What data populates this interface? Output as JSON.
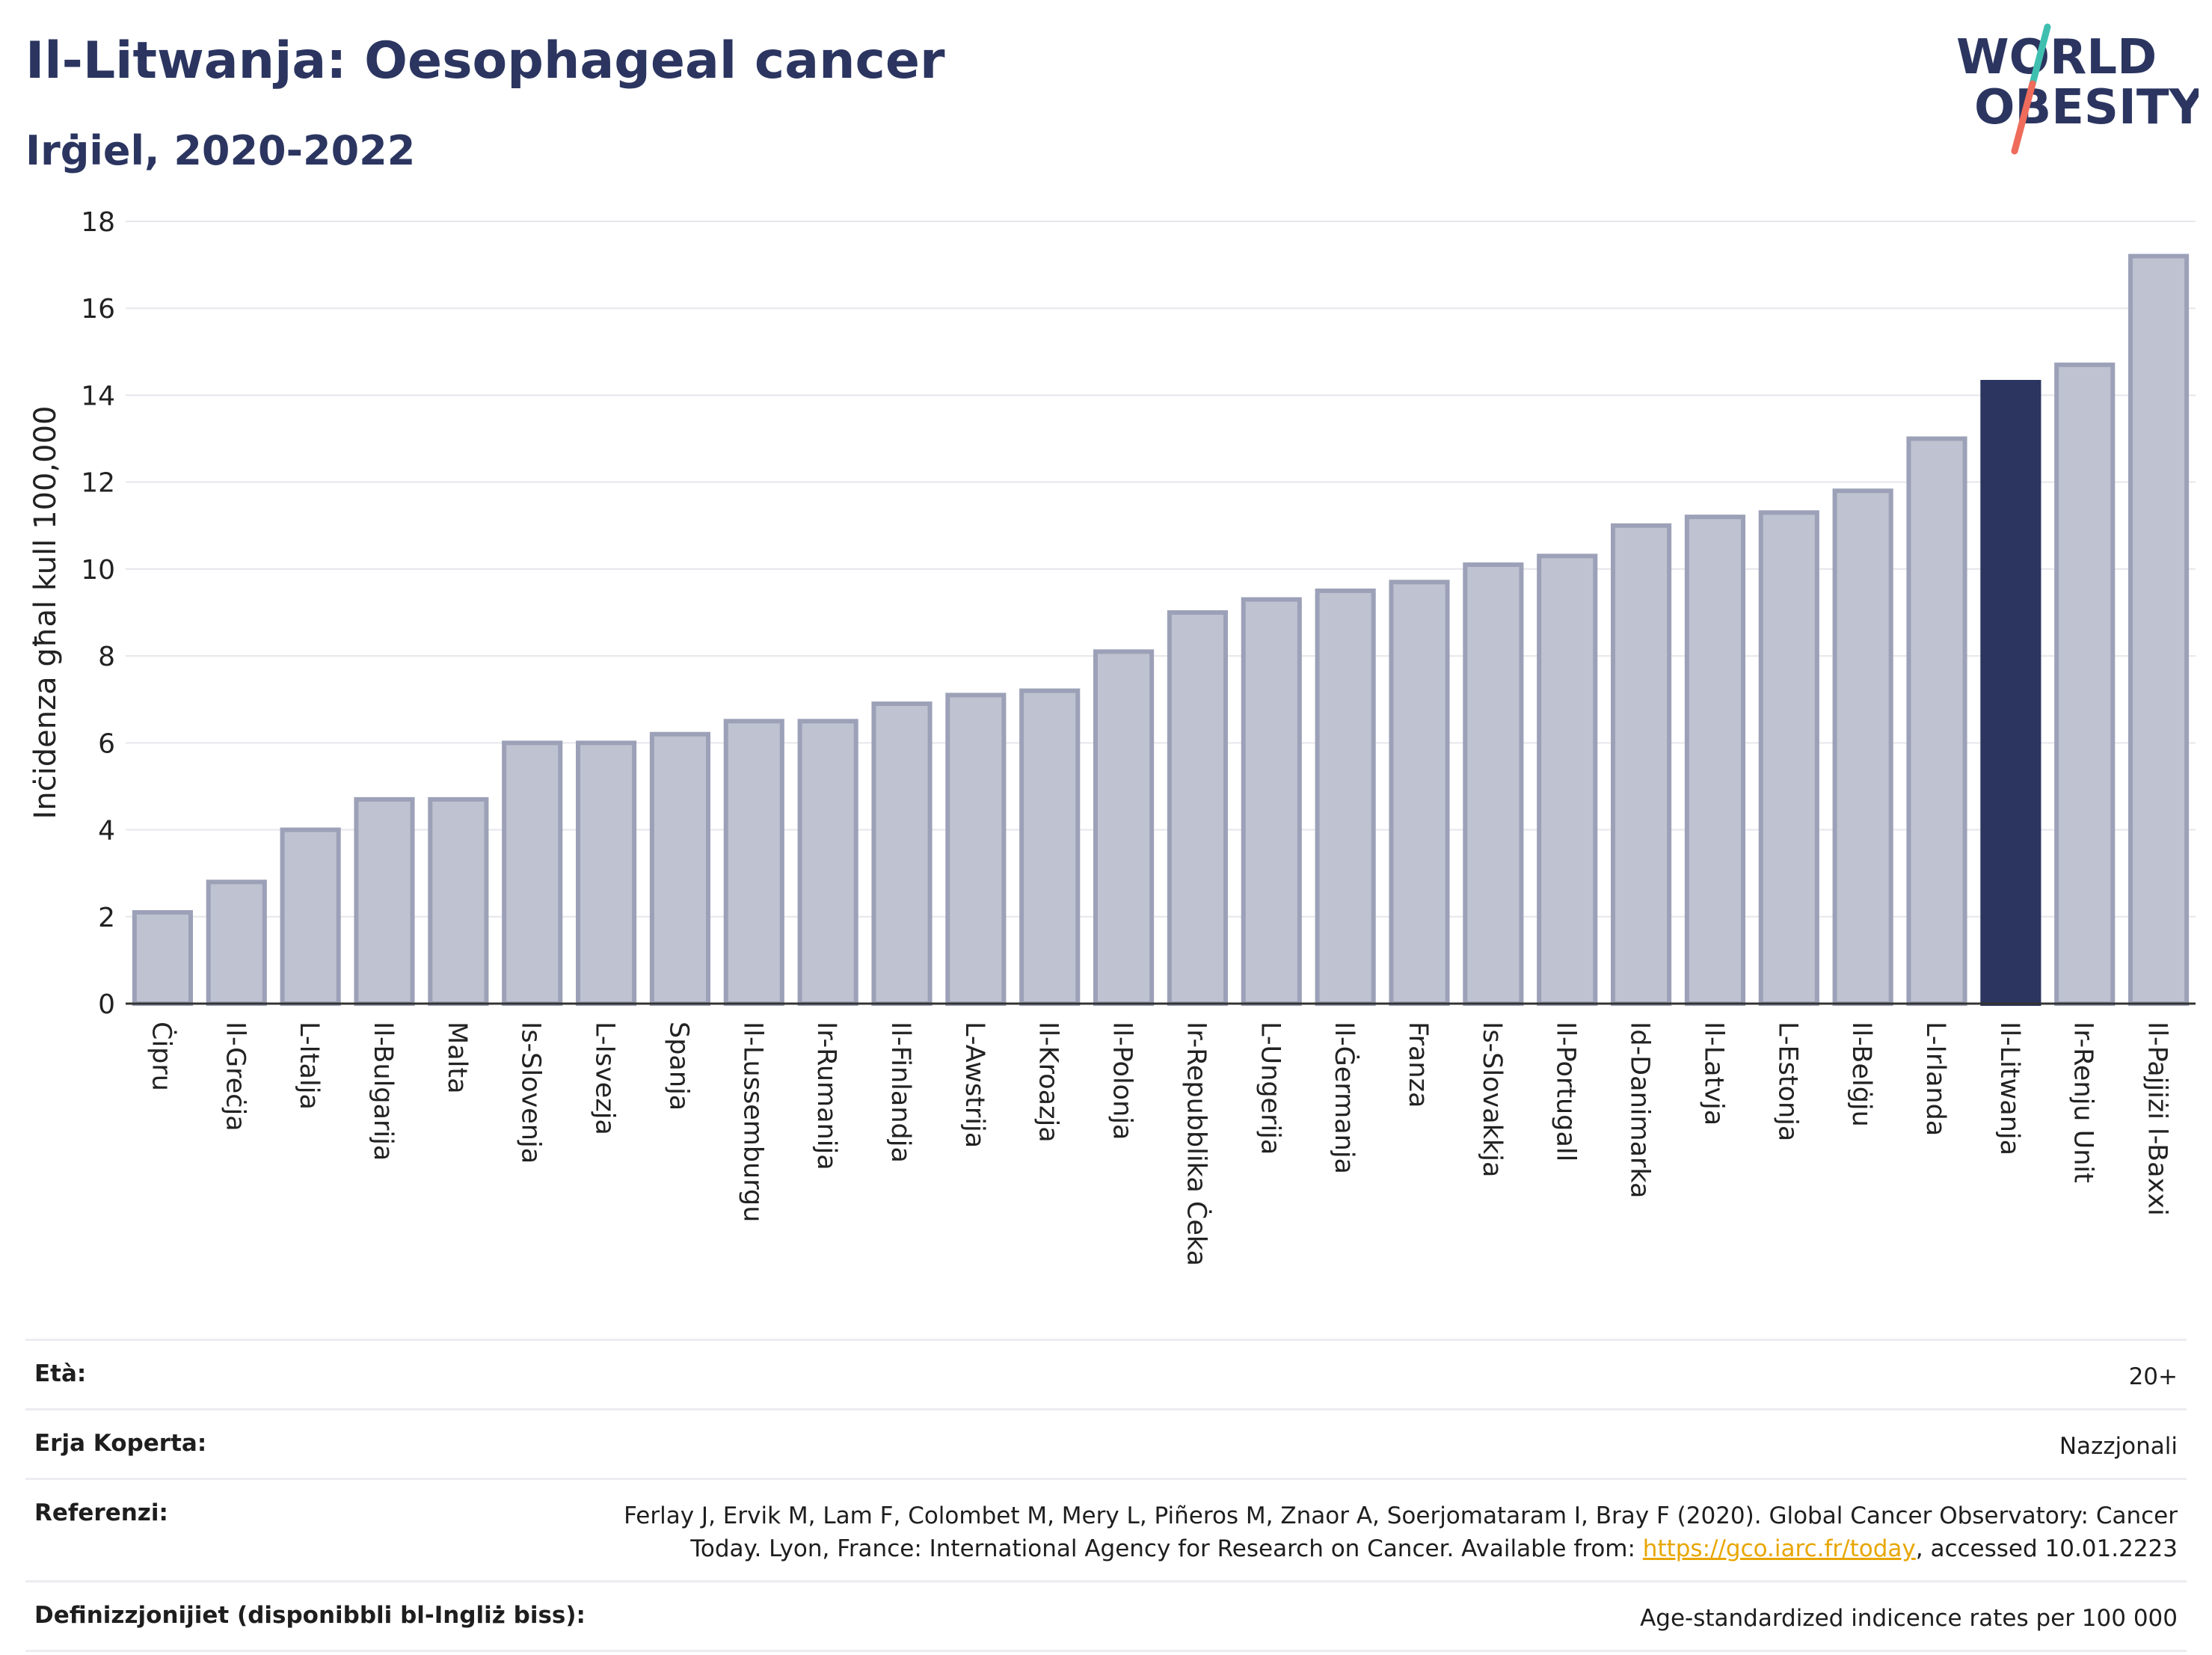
{
  "header": {
    "title": "Il-Litwanja: Oesophageal cancer",
    "subtitle": "Irġiel, 2020-2022",
    "logo_line1": "WORLD",
    "logo_line2": "OBESITY"
  },
  "colors": {
    "bar": "#bfc2d0",
    "bar_stroke": "#9ca1b8",
    "highlight": "#2b3560",
    "title": "#2b3560",
    "logo_teal": "#3fbfb0",
    "logo_coral": "#ef6b5b"
  },
  "chart_data": {
    "type": "bar",
    "title": "Il-Litwanja: Oesophageal cancer",
    "subtitle": "Irġiel, 2020-2022",
    "ylabel": "Inċidenza għal kull 100,000",
    "xlabel": "",
    "ylim": [
      0,
      18
    ],
    "yticks": [
      0,
      2,
      4,
      6,
      8,
      10,
      12,
      14,
      16,
      18
    ],
    "grid": true,
    "highlight": "Il-Litwanja",
    "categories": [
      "Ċipru",
      "Il-Greċja",
      "L-Italja",
      "Il-Bulgarija",
      "Malta",
      "Is-Slovenja",
      "L-Isvezja",
      "Spanja",
      "Il-Lussemburgu",
      "Ir-Rumanija",
      "Il-Finlandja",
      "L-Awstrija",
      "Il-Kroazja",
      "Il-Polonja",
      "Ir-Repubblika Ċeka",
      "L-Ungerija",
      "Il-Ġermanja",
      "Franza",
      "Is-Slovakkja",
      "Il-Portugall",
      "Id-Danimarka",
      "Il-Latvja",
      "L-Estonja",
      "Il-Belġju",
      "L-Irlanda",
      "Il-Litwanja",
      "Ir-Renju Unit",
      "Il-Pajjiżi l-Baxxi"
    ],
    "values": [
      2.1,
      2.8,
      4.0,
      4.7,
      4.7,
      6.0,
      6.0,
      6.2,
      6.5,
      6.5,
      6.9,
      7.1,
      7.2,
      8.1,
      9.0,
      9.3,
      9.5,
      9.7,
      10.1,
      10.3,
      11.0,
      11.2,
      11.3,
      11.8,
      13.0,
      14.3,
      14.7,
      17.2
    ]
  },
  "info": {
    "age_label": "Età:",
    "age_value": "20+",
    "area_label": "Erja Koperta:",
    "area_value": "Nazzjonali",
    "ref_label": "Referenzi:",
    "ref_line1": "Ferlay J, Ervik M, Lam F, Colombet M, Mery L, Piñeros M, Znaor A, Soerjomataram I, Bray F (2020). Global Cancer Observatory: Cancer",
    "ref_line2_pre": "Today. Lyon, France: International Agency for Research on Cancer. Available from: ",
    "ref_link": "https://gco.iarc.fr/today",
    "ref_line2_post": ", accessed 10.01.2223",
    "def_label": "Definizzjonijiet (disponibbli bl-Ingliż biss):",
    "def_value": "Age-standardized indicence rates per 100 000"
  }
}
